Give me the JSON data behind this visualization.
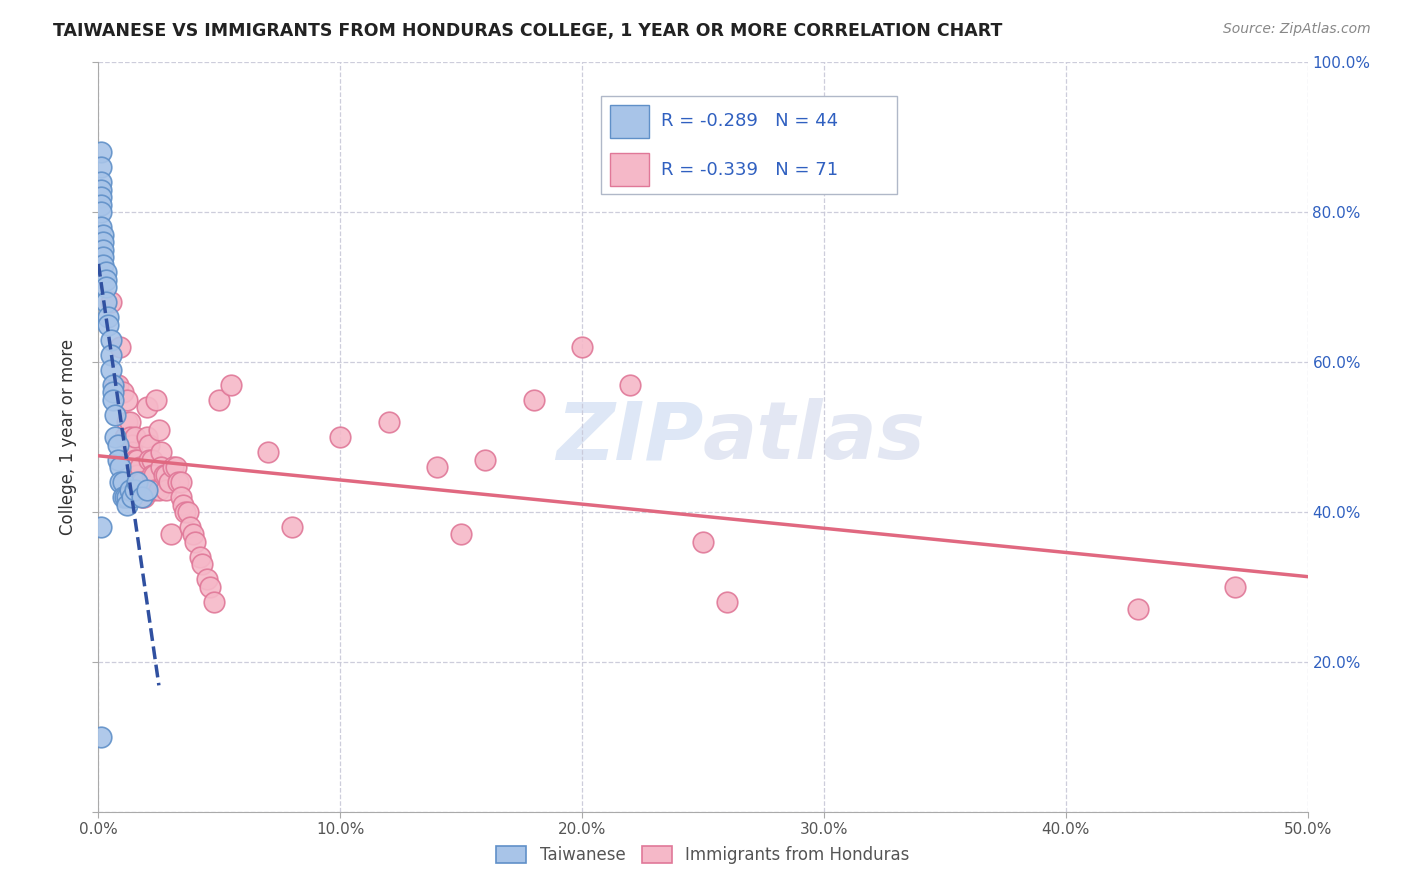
{
  "title": "TAIWANESE VS IMMIGRANTS FROM HONDURAS COLLEGE, 1 YEAR OR MORE CORRELATION CHART",
  "source": "Source: ZipAtlas.com",
  "ylabel": "College, 1 year or more",
  "xlim": [
    0.0,
    0.5
  ],
  "ylim": [
    0.0,
    1.0
  ],
  "xtick_vals": [
    0.0,
    0.1,
    0.2,
    0.3,
    0.4,
    0.5
  ],
  "xtick_labels": [
    "0.0%",
    "10.0%",
    "20.0%",
    "30.0%",
    "40.0%",
    "50.0%"
  ],
  "ytick_vals": [
    0.0,
    0.2,
    0.4,
    0.6,
    0.8,
    1.0
  ],
  "ytick_labels_right": [
    "",
    "20.0%",
    "40.0%",
    "60.0%",
    "80.0%",
    "100.0%"
  ],
  "taiwanese_color": "#a8c4e8",
  "taiwanese_edge_color": "#6090c8",
  "honduras_color": "#f5b8c8",
  "honduras_edge_color": "#e07898",
  "trend_taiwanese_color": "#3050a0",
  "trend_honduras_color": "#e06880",
  "watermark_color": "#c8d8f0",
  "watermark_color2": "#c8d0e8",
  "r_taiwanese": -0.289,
  "n_taiwanese": 44,
  "r_honduras": -0.339,
  "n_honduras": 71,
  "legend_text_color": "#3060c0",
  "legend_border_color": "#b0b8c8",
  "grid_color": "#c8c8d8",
  "tw_x": [
    0.001,
    0.001,
    0.001,
    0.001,
    0.001,
    0.001,
    0.001,
    0.001,
    0.002,
    0.002,
    0.002,
    0.002,
    0.002,
    0.003,
    0.003,
    0.003,
    0.003,
    0.004,
    0.004,
    0.005,
    0.005,
    0.005,
    0.006,
    0.006,
    0.006,
    0.007,
    0.007,
    0.008,
    0.008,
    0.009,
    0.009,
    0.01,
    0.01,
    0.011,
    0.012,
    0.012,
    0.013,
    0.014,
    0.015,
    0.016,
    0.018,
    0.02,
    0.001,
    0.001
  ],
  "tw_y": [
    0.88,
    0.86,
    0.84,
    0.83,
    0.82,
    0.81,
    0.8,
    0.78,
    0.77,
    0.76,
    0.75,
    0.74,
    0.73,
    0.72,
    0.71,
    0.7,
    0.68,
    0.66,
    0.65,
    0.63,
    0.61,
    0.59,
    0.57,
    0.56,
    0.55,
    0.53,
    0.5,
    0.49,
    0.47,
    0.46,
    0.44,
    0.44,
    0.42,
    0.42,
    0.42,
    0.41,
    0.43,
    0.42,
    0.43,
    0.44,
    0.42,
    0.43,
    0.38,
    0.1
  ],
  "hn_x": [
    0.005,
    0.007,
    0.008,
    0.009,
    0.01,
    0.011,
    0.012,
    0.012,
    0.013,
    0.013,
    0.014,
    0.014,
    0.015,
    0.015,
    0.016,
    0.016,
    0.017,
    0.017,
    0.018,
    0.018,
    0.019,
    0.02,
    0.02,
    0.021,
    0.021,
    0.022,
    0.022,
    0.023,
    0.023,
    0.024,
    0.025,
    0.025,
    0.026,
    0.026,
    0.027,
    0.028,
    0.028,
    0.029,
    0.03,
    0.031,
    0.032,
    0.033,
    0.034,
    0.034,
    0.035,
    0.036,
    0.037,
    0.038,
    0.039,
    0.04,
    0.042,
    0.043,
    0.045,
    0.046,
    0.048,
    0.05,
    0.055,
    0.07,
    0.08,
    0.1,
    0.12,
    0.14,
    0.15,
    0.16,
    0.18,
    0.2,
    0.22,
    0.25,
    0.26,
    0.43,
    0.47
  ],
  "hn_y": [
    0.68,
    0.57,
    0.57,
    0.62,
    0.56,
    0.5,
    0.55,
    0.52,
    0.52,
    0.5,
    0.49,
    0.48,
    0.5,
    0.47,
    0.47,
    0.45,
    0.46,
    0.44,
    0.44,
    0.42,
    0.42,
    0.54,
    0.5,
    0.49,
    0.47,
    0.47,
    0.45,
    0.45,
    0.43,
    0.55,
    0.51,
    0.43,
    0.48,
    0.46,
    0.45,
    0.45,
    0.43,
    0.44,
    0.37,
    0.46,
    0.46,
    0.44,
    0.44,
    0.42,
    0.41,
    0.4,
    0.4,
    0.38,
    0.37,
    0.36,
    0.34,
    0.33,
    0.31,
    0.3,
    0.28,
    0.55,
    0.57,
    0.48,
    0.38,
    0.5,
    0.52,
    0.46,
    0.37,
    0.47,
    0.55,
    0.62,
    0.57,
    0.36,
    0.28,
    0.27,
    0.3
  ]
}
